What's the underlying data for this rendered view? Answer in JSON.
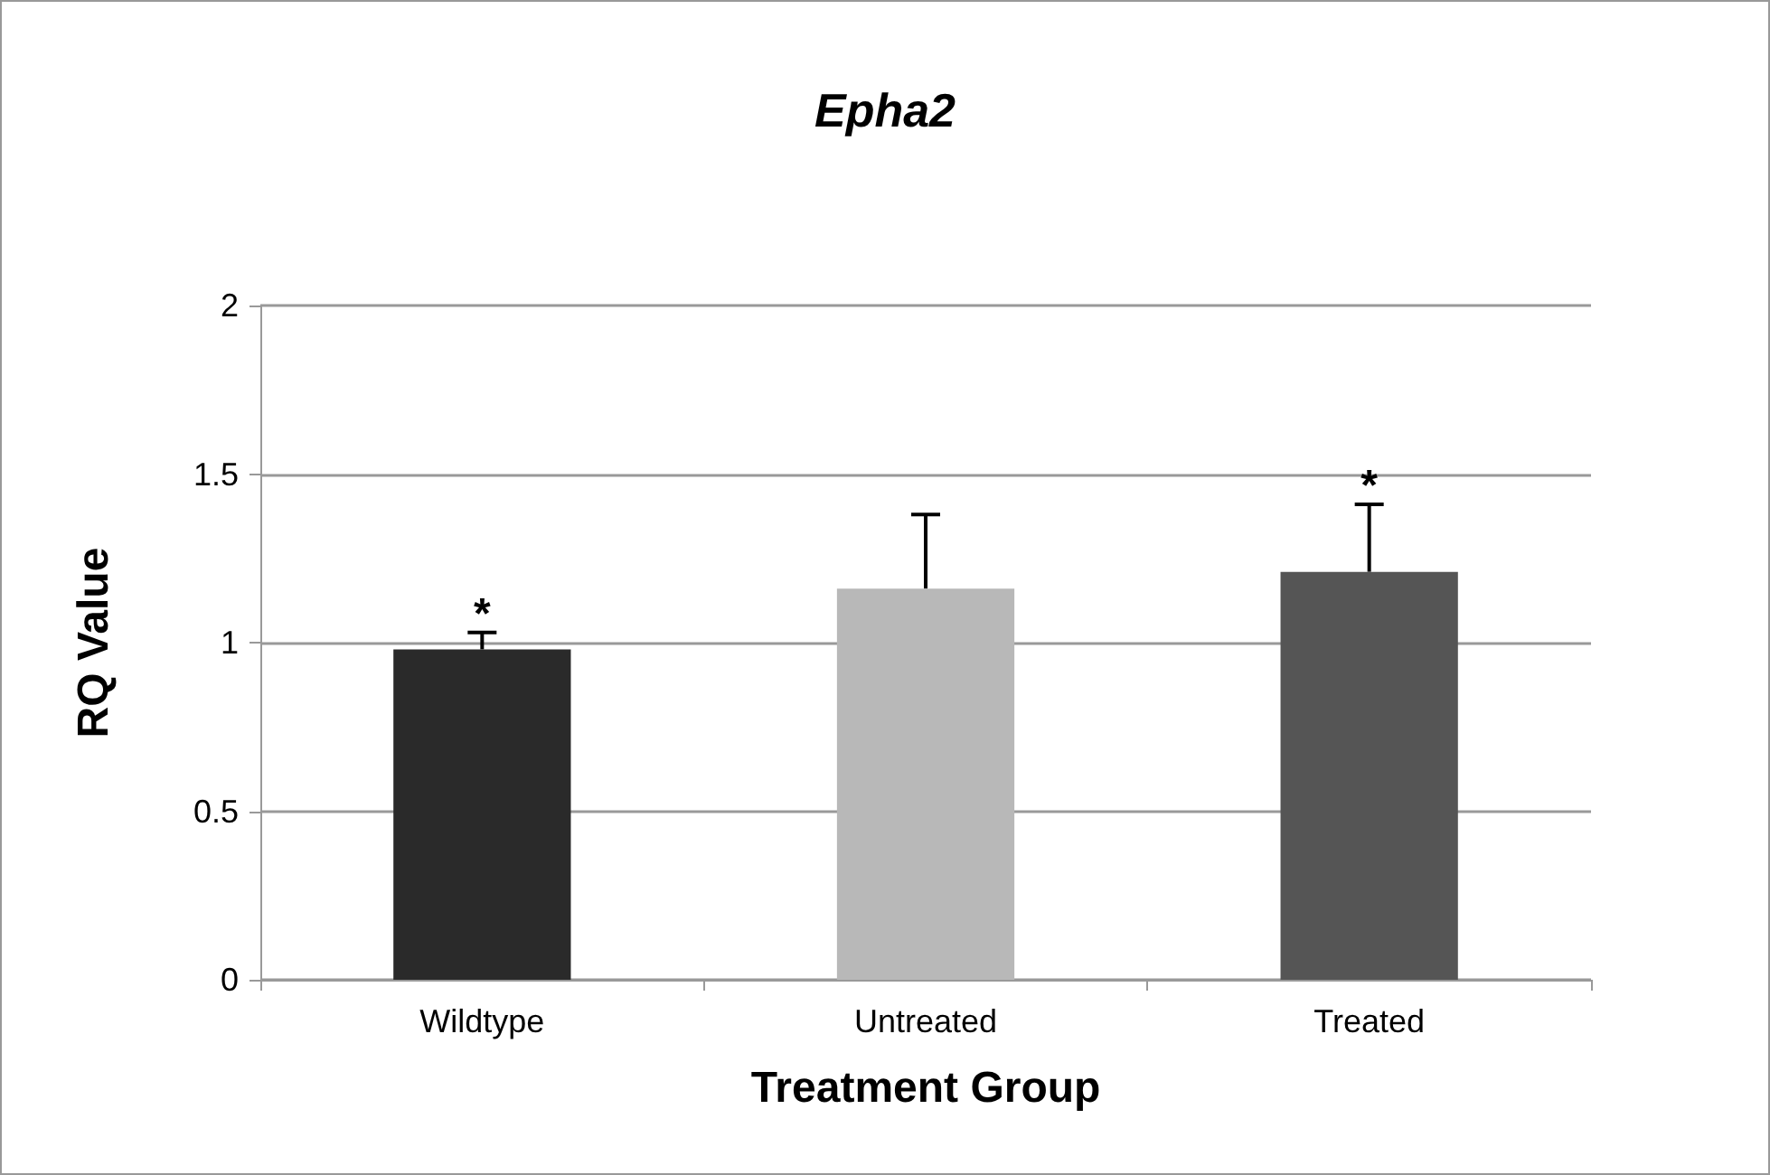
{
  "chart_data": {
    "type": "bar",
    "title": "Epha2",
    "xlabel": "Treatment Group",
    "ylabel": "RQ Value",
    "categories": [
      "Wildtype",
      "Untreated",
      "Treated"
    ],
    "values": [
      0.98,
      1.16,
      1.21
    ],
    "colors": [
      "#2a2a2a",
      "#b8b8b8",
      "#555555"
    ],
    "errors": [
      [
        0.98,
        1.03
      ],
      [
        1.16,
        1.38
      ],
      [
        1.21,
        1.41
      ]
    ],
    "annotations": [
      {
        "text": "*",
        "x": "Wildtype",
        "y": 1.03
      },
      {
        "text": "*",
        "x": "Treated",
        "y": 1.41
      }
    ],
    "ylim": [
      0,
      2
    ],
    "yticks": [
      0,
      0.5,
      1,
      1.5,
      2
    ],
    "grid": "y"
  }
}
